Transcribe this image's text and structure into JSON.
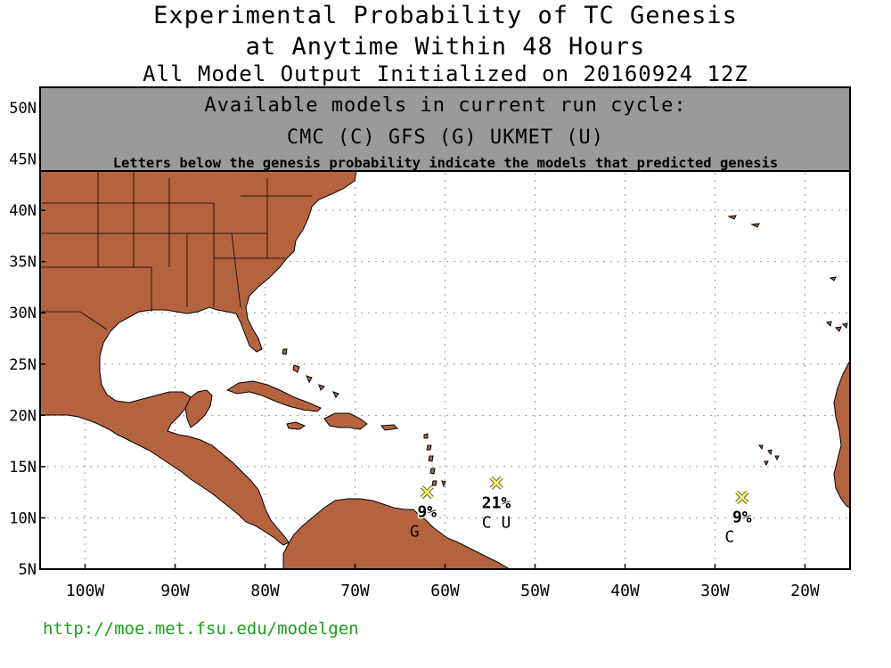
{
  "title": {
    "line1": "Experimental Probability of TC Genesis",
    "line2": "at Anytime Within 48 Hours",
    "line3": "All Model Output Initialized on 20160924 12Z"
  },
  "info_box": {
    "line1": "Available models in current run cycle:",
    "line2": "CMC (C) GFS (G)  UKMET (U)",
    "line3": "Letters below the genesis probability indicate the models that predicted genesis"
  },
  "map": {
    "lon_range": [
      -105,
      -15
    ],
    "lat_range": [
      5,
      52
    ],
    "lon_ticks": [
      {
        "lon": -100,
        "label": "100W"
      },
      {
        "lon": -90,
        "label": "90W"
      },
      {
        "lon": -80,
        "label": "80W"
      },
      {
        "lon": -70,
        "label": "70W"
      },
      {
        "lon": -60,
        "label": "60W"
      },
      {
        "lon": -50,
        "label": "50W"
      },
      {
        "lon": -40,
        "label": "40W"
      },
      {
        "lon": -30,
        "label": "30W"
      },
      {
        "lon": -20,
        "label": "20W"
      }
    ],
    "lat_ticks": [
      {
        "lat": 5,
        "label": "5N"
      },
      {
        "lat": 10,
        "label": "10N"
      },
      {
        "lat": 15,
        "label": "15N"
      },
      {
        "lat": 20,
        "label": "20N"
      },
      {
        "lat": 25,
        "label": "25N"
      },
      {
        "lat": 30,
        "label": "30N"
      },
      {
        "lat": 35,
        "label": "35N"
      },
      {
        "lat": 40,
        "label": "40N"
      },
      {
        "lat": 45,
        "label": "45N"
      },
      {
        "lat": 50,
        "label": "50N"
      }
    ],
    "land_color": "#b5633f",
    "marker_color": "#ffff66",
    "grid": "dotted"
  },
  "genesis_points": [
    {
      "lon": -62,
      "lat": 12.5,
      "probability": "9%",
      "models": "G"
    },
    {
      "lon": -54.3,
      "lat": 13.4,
      "probability": "21%",
      "models": "C U"
    },
    {
      "lon": -27,
      "lat": 12.0,
      "probability": "9%",
      "models": "C"
    }
  ],
  "footer": {
    "url": "http://moe.met.fsu.edu/modelgen",
    "color": "#1e9e1e"
  }
}
